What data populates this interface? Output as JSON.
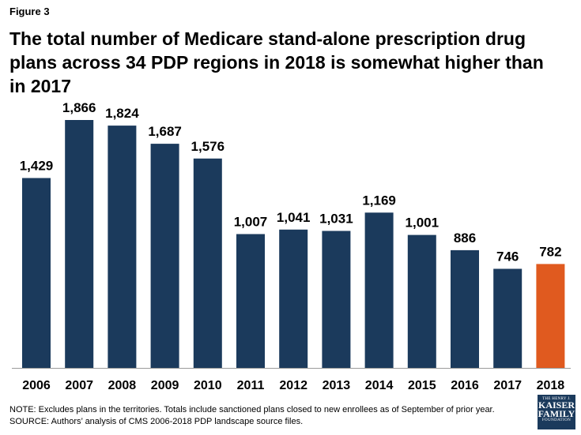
{
  "figure_label": "Figure 3",
  "title": "The total number of Medicare stand-alone prescription drug plans across 34 PDP regions in 2018 is somewhat higher than in 2017",
  "footer": {
    "note": "NOTE: Excludes plans in the territories. Totals include sanctioned plans closed to new enrollees as of September of prior year.",
    "source": "SOURCE: Authors’ analysis of CMS 2006-2018 PDP landscape source files."
  },
  "logo": {
    "line1": "THE HENRY J.",
    "line2": "KAISER",
    "line3": "FAMILY",
    "line4": "FOUNDATION"
  },
  "chart_data": {
    "type": "bar",
    "categories": [
      "2006",
      "2007",
      "2008",
      "2009",
      "2010",
      "2011",
      "2012",
      "2013",
      "2014",
      "2015",
      "2016",
      "2017",
      "2018"
    ],
    "values": [
      1429,
      1866,
      1824,
      1687,
      1576,
      1007,
      1041,
      1031,
      1169,
      1001,
      886,
      746,
      782
    ],
    "value_labels": [
      "1,429",
      "1,866",
      "1,824",
      "1,687",
      "1,576",
      "1,007",
      "1,041",
      "1,031",
      "1,169",
      "1,001",
      "886",
      "746",
      "782"
    ],
    "colors": {
      "default": "#1b3a5c",
      "highlight": "#e05a1f",
      "highlight_category": "2018",
      "axis": "#9a9a9a"
    },
    "xlabel": "",
    "ylabel": "",
    "ylim": [
      0,
      1866
    ],
    "grid": false,
    "legend": "none"
  }
}
